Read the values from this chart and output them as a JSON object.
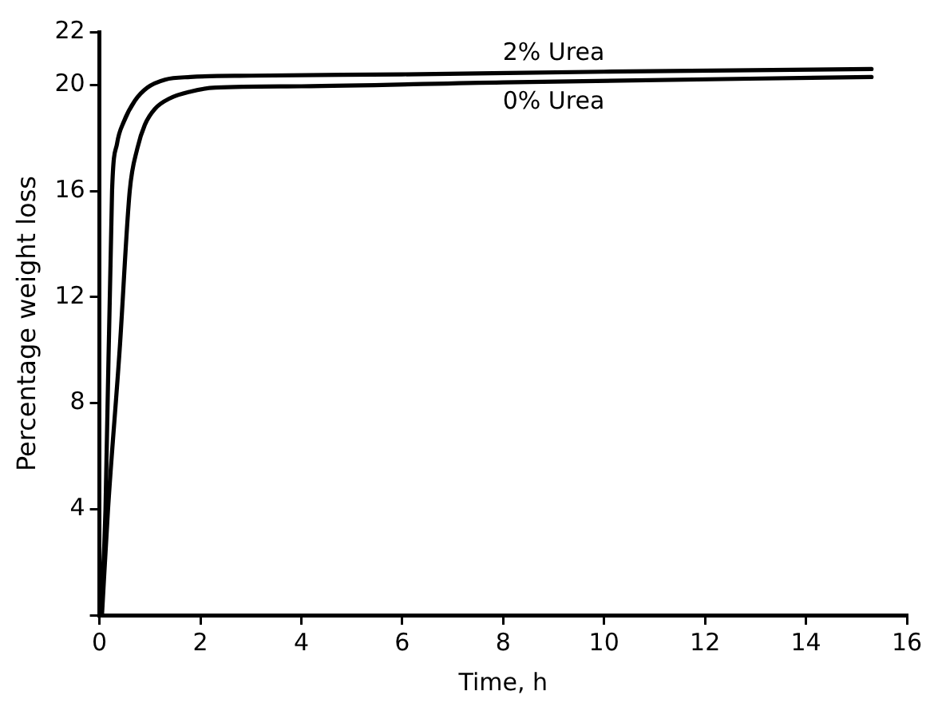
{
  "chart_data": {
    "type": "line",
    "xlabel": "Time, h",
    "ylabel": "Percentage weight loss",
    "series": [
      {
        "name": "2% Urea",
        "color": "#000000",
        "x": [
          0.03,
          0.12,
          0.25,
          0.35,
          0.48,
          0.7,
          0.95,
          1.3,
          1.8,
          3,
          6,
          10,
          15.3
        ],
        "values": [
          0,
          4,
          16,
          17.8,
          18.6,
          19.4,
          19.9,
          20.2,
          20.3,
          20.35,
          20.4,
          20.5,
          20.6
        ]
      },
      {
        "name": "0% Urea",
        "color": "#000000",
        "x": [
          0.05,
          0.17,
          0.4,
          0.6,
          0.75,
          0.9,
          1.1,
          1.4,
          1.8,
          2.3,
          4,
          8,
          15.3
        ],
        "values": [
          0,
          4,
          10,
          16,
          17.6,
          18.5,
          19.1,
          19.5,
          19.75,
          19.9,
          19.95,
          20.1,
          20.3
        ]
      }
    ],
    "xlim": [
      0,
      16
    ],
    "xticks": [
      0,
      2,
      4,
      6,
      8,
      10,
      12,
      14,
      16
    ],
    "ylim": [
      0,
      22
    ],
    "yticks": [
      {
        "value": 0,
        "label": null
      },
      4,
      8,
      12,
      16,
      20,
      22
    ],
    "grid": false,
    "legend": false,
    "marker": "none",
    "line_style": "solid"
  }
}
